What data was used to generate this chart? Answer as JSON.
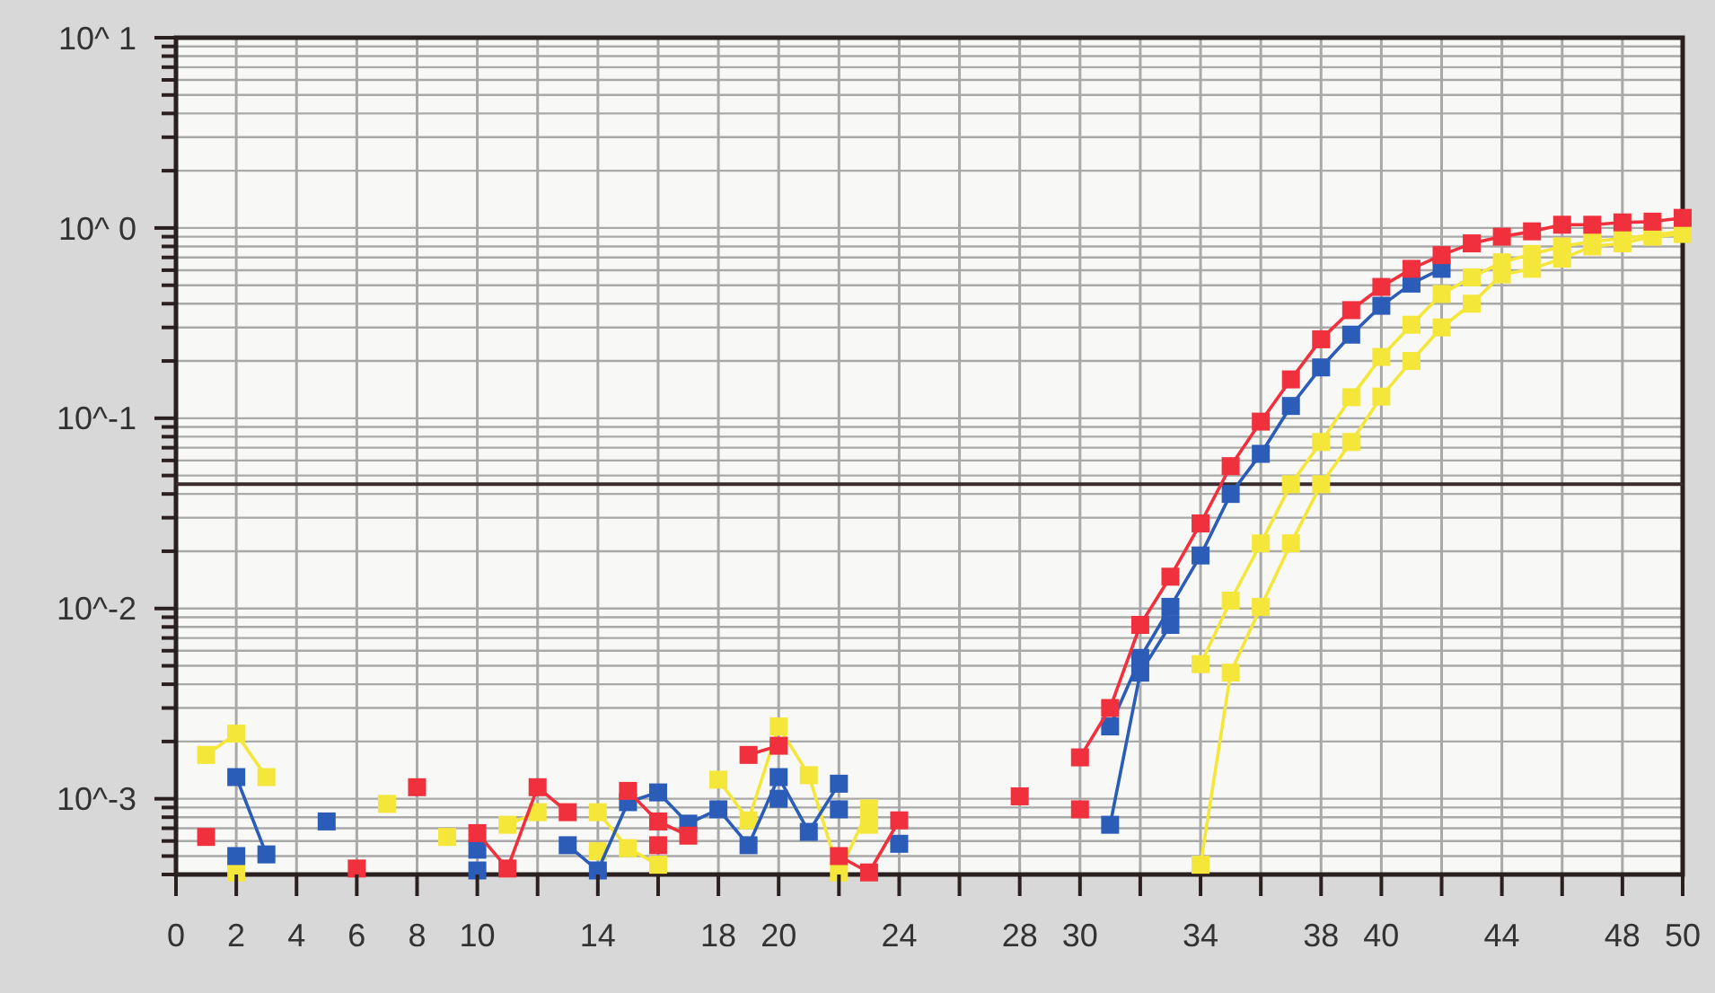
{
  "chart_data": {
    "type": "line",
    "log": true,
    "grid": true,
    "marker": "square",
    "line_style": "solid",
    "x": [
      1,
      2,
      3,
      4,
      5,
      6,
      7,
      8,
      9,
      10,
      11,
      12,
      13,
      14,
      15,
      16,
      17,
      18,
      19,
      20,
      21,
      22,
      23,
      24,
      25,
      26,
      27,
      28,
      29,
      30,
      31,
      32,
      33,
      34,
      35,
      36,
      37,
      38,
      39,
      40,
      41,
      42,
      43,
      44,
      45,
      46,
      47,
      48,
      49,
      50
    ],
    "xlim": [
      0,
      50
    ],
    "xticks": [
      0,
      2,
      4,
      6,
      8,
      10,
      {
        "value": 12,
        "label": null
      },
      14,
      {
        "value": 16,
        "label": null
      },
      18,
      20,
      {
        "value": 22,
        "label": null
      },
      24,
      {
        "value": 26,
        "label": null
      },
      28,
      30,
      {
        "value": 32,
        "label": null
      },
      34,
      {
        "value": 36,
        "label": null
      },
      38,
      40,
      {
        "value": 42,
        "label": null
      },
      44,
      {
        "value": 46,
        "label": null
      },
      48,
      50
    ],
    "ylim": [
      0.0004,
      10
    ],
    "yticks": [
      {
        "value": 0.0004,
        "label": null
      },
      {
        "value": 0.0005,
        "label": null
      },
      {
        "value": 0.0006,
        "label": null
      },
      {
        "value": 0.0007,
        "label": null
      },
      {
        "value": 0.0008,
        "label": null
      },
      {
        "value": 0.0009,
        "label": null
      },
      {
        "value": 0.001,
        "label": "10^-3"
      },
      {
        "value": 0.002,
        "label": null
      },
      {
        "value": 0.003,
        "label": null
      },
      {
        "value": 0.004,
        "label": null
      },
      {
        "value": 0.005,
        "label": null
      },
      {
        "value": 0.006,
        "label": null
      },
      {
        "value": 0.007,
        "label": null
      },
      {
        "value": 0.008,
        "label": null
      },
      {
        "value": 0.009,
        "label": null
      },
      {
        "value": 0.01,
        "label": "10^-2"
      },
      {
        "value": 0.02,
        "label": null
      },
      {
        "value": 0.03,
        "label": null
      },
      {
        "value": 0.04,
        "label": null
      },
      {
        "value": 0.05,
        "label": null
      },
      {
        "value": 0.06,
        "label": null
      },
      {
        "value": 0.07,
        "label": null
      },
      {
        "value": 0.08,
        "label": null
      },
      {
        "value": 0.09,
        "label": null
      },
      {
        "value": 0.1,
        "label": "10^-1"
      },
      {
        "value": 0.2,
        "label": null
      },
      {
        "value": 0.3,
        "label": null
      },
      {
        "value": 0.4,
        "label": null
      },
      {
        "value": 0.5,
        "label": null
      },
      {
        "value": 0.6,
        "label": null
      },
      {
        "value": 0.7,
        "label": null
      },
      {
        "value": 0.8,
        "label": null
      },
      {
        "value": 0.9,
        "label": null
      },
      {
        "value": 1,
        "label": "10^ 0"
      },
      {
        "value": 2,
        "label": null
      },
      {
        "value": 3,
        "label": null
      },
      {
        "value": 4,
        "label": null
      },
      {
        "value": 5,
        "label": null
      },
      {
        "value": 6,
        "label": null
      },
      {
        "value": 7,
        "label": null
      },
      {
        "value": 8,
        "label": null
      },
      {
        "value": 9,
        "label": null
      },
      {
        "value": 10,
        "label": "10^ 1"
      }
    ],
    "ref_lines": [
      {
        "axis": "y",
        "value": 0.045,
        "color": "#3a2c2c"
      }
    ],
    "series": [
      {
        "color": "#f5e63a",
        "values": [
          0.0017,
          0.0022,
          0.0013,
          null,
          null,
          null,
          0.00094,
          null,
          0.00063,
          null,
          0.00073,
          0.00085,
          null,
          0.00085,
          0.00055,
          0.00045,
          null,
          0.00126,
          0.00077,
          0.0024,
          0.00133,
          0.00041,
          0.00089,
          null,
          null,
          null,
          null,
          null,
          null,
          null,
          null,
          null,
          null,
          0.0051,
          0.011,
          0.022,
          0.045,
          0.075,
          0.129,
          0.21,
          0.31,
          0.45,
          0.55,
          0.66,
          0.73,
          0.8,
          0.85,
          0.88,
          0.92,
          0.96
        ]
      },
      {
        "color": "#f5e63a",
        "values": [
          null,
          0.00041,
          null,
          null,
          null,
          null,
          null,
          null,
          null,
          null,
          null,
          null,
          null,
          0.00053,
          null,
          null,
          null,
          null,
          null,
          null,
          null,
          null,
          0.00073,
          null,
          null,
          null,
          null,
          null,
          null,
          null,
          null,
          null,
          null,
          0.00045,
          0.0046,
          0.0102,
          0.022,
          0.045,
          0.075,
          0.13,
          0.2,
          0.3,
          0.4,
          0.57,
          0.61,
          0.69,
          0.8,
          0.83,
          0.9,
          0.93
        ]
      },
      {
        "color": "#2a5cb8",
        "values": [
          null,
          0.0005,
          null,
          null,
          null,
          null,
          null,
          null,
          null,
          0.00042,
          null,
          null,
          null,
          null,
          null,
          null,
          null,
          null,
          null,
          0.001,
          null,
          0.00088,
          null,
          null,
          null,
          null,
          null,
          null,
          null,
          null,
          0.00073,
          0.0046,
          0.0082,
          null,
          null,
          null,
          null,
          null,
          null,
          null,
          null,
          null,
          null,
          null,
          null,
          null,
          null,
          null,
          null,
          null
        ]
      },
      {
        "color": "#2a5cb8",
        "values": [
          null,
          0.0013,
          0.00051,
          null,
          0.00076,
          null,
          null,
          null,
          null,
          0.00054,
          null,
          null,
          0.00057,
          0.00042,
          0.00096,
          0.00108,
          0.00074,
          0.00088,
          0.00057,
          0.0013,
          0.00067,
          0.0012,
          null,
          0.00058,
          null,
          null,
          null,
          null,
          null,
          null,
          0.0024,
          0.0055,
          0.0102,
          0.019,
          0.04,
          0.065,
          0.116,
          0.185,
          0.275,
          0.39,
          0.51,
          0.61,
          null,
          null,
          null,
          null,
          null,
          null,
          null,
          null
        ]
      },
      {
        "color": "#f0303c",
        "values": [
          null,
          null,
          null,
          null,
          null,
          null,
          null,
          null,
          null,
          null,
          null,
          null,
          null,
          null,
          null,
          0.00057,
          null,
          null,
          null,
          null,
          null,
          null,
          null,
          null,
          null,
          null,
          null,
          null,
          null,
          0.00088,
          null,
          null,
          null,
          null,
          null,
          null,
          null,
          null,
          null,
          null,
          null,
          null,
          null,
          null,
          null,
          null,
          null,
          null,
          null,
          null
        ]
      },
      {
        "color": "#f0303c",
        "values": [
          0.00063,
          null,
          null,
          null,
          null,
          0.00043,
          null,
          0.00115,
          null,
          0.00066,
          0.00043,
          0.00115,
          0.00085,
          null,
          0.0011,
          0.00076,
          0.00064,
          null,
          0.0017,
          0.0019,
          null,
          0.0005,
          0.00041,
          0.00077,
          null,
          null,
          null,
          0.00103,
          null,
          0.00165,
          0.003,
          0.0082,
          0.0147,
          0.028,
          0.056,
          0.096,
          0.16,
          0.26,
          0.37,
          0.49,
          0.61,
          0.72,
          0.83,
          0.9,
          0.96,
          1.04,
          1.04,
          1.07,
          1.08,
          1.13
        ]
      }
    ]
  }
}
